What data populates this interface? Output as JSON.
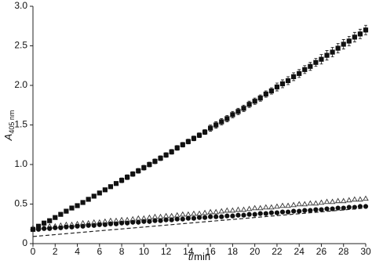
{
  "chart_data": {
    "type": "scatter",
    "x_label": {
      "symbol": "t",
      "rest": "/min"
    },
    "y_label": {
      "symbol": "A",
      "subscript": "405 nm"
    },
    "xlim": [
      0,
      30
    ],
    "xticks": [
      0,
      2,
      4,
      6,
      8,
      10,
      12,
      14,
      16,
      18,
      20,
      22,
      24,
      26,
      28,
      30
    ],
    "ylim": [
      0,
      3
    ],
    "yticks": [
      0,
      0.5,
      {
        "value": 1,
        "label": "1.0"
      },
      1.5,
      {
        "value": 2,
        "label": "2.0"
      },
      2.5,
      {
        "value": 3,
        "label": "3.0"
      }
    ],
    "grid": false,
    "x": [
      0,
      0.5,
      1,
      1.5,
      2,
      2.5,
      3,
      3.5,
      4,
      4.5,
      5,
      5.5,
      6,
      6.5,
      7,
      7.5,
      8,
      8.5,
      9,
      9.5,
      10,
      10.5,
      11,
      11.5,
      12,
      12.5,
      13,
      13.5,
      14,
      14.5,
      15,
      15.5,
      16,
      16.5,
      17,
      17.5,
      18,
      18.5,
      19,
      19.5,
      20,
      20.5,
      21,
      21.5,
      22,
      22.5,
      23,
      23.5,
      24,
      24.5,
      25,
      25.5,
      26,
      26.5,
      27,
      27.5,
      28,
      28.5,
      29,
      29.5,
      30
    ],
    "series": [
      {
        "marker": "triangle",
        "filled": false,
        "color": "#333333",
        "values": [
          0.2,
          0.21,
          0.21,
          0.22,
          0.22,
          0.23,
          0.24,
          0.24,
          0.25,
          0.26,
          0.26,
          0.27,
          0.27,
          0.28,
          0.29,
          0.29,
          0.3,
          0.3,
          0.31,
          0.32,
          0.32,
          0.33,
          0.34,
          0.34,
          0.35,
          0.35,
          0.36,
          0.37,
          0.37,
          0.38,
          0.38,
          0.39,
          0.4,
          0.4,
          0.41,
          0.42,
          0.42,
          0.43,
          0.43,
          0.44,
          0.45,
          0.45,
          0.46,
          0.46,
          0.47,
          0.48,
          0.48,
          0.49,
          0.5,
          0.5,
          0.51,
          0.51,
          0.52,
          0.53,
          0.53,
          0.54,
          0.54,
          0.55,
          0.56,
          0.56,
          0.57
        ]
      },
      {
        "marker": "circle",
        "filled": true,
        "color": "#111111",
        "values": [
          0.18,
          0.18,
          0.19,
          0.19,
          0.2,
          0.2,
          0.21,
          0.21,
          0.22,
          0.22,
          0.23,
          0.23,
          0.24,
          0.24,
          0.25,
          0.25,
          0.26,
          0.26,
          0.27,
          0.27,
          0.28,
          0.28,
          0.29,
          0.29,
          0.3,
          0.3,
          0.31,
          0.31,
          0.32,
          0.32,
          0.33,
          0.33,
          0.34,
          0.34,
          0.34,
          0.35,
          0.35,
          0.36,
          0.36,
          0.37,
          0.37,
          0.38,
          0.38,
          0.39,
          0.39,
          0.4,
          0.4,
          0.41,
          0.41,
          0.42,
          0.42,
          0.43,
          0.43,
          0.44,
          0.44,
          0.45,
          0.45,
          0.46,
          0.46,
          0.47,
          0.47
        ]
      },
      {
        "marker": "square",
        "filled": true,
        "color": "#111111",
        "values": [
          0.18,
          0.22,
          0.26,
          0.29,
          0.33,
          0.37,
          0.41,
          0.45,
          0.48,
          0.52,
          0.56,
          0.6,
          0.64,
          0.68,
          0.72,
          0.76,
          0.8,
          0.84,
          0.88,
          0.92,
          0.96,
          1.0,
          1.04,
          1.08,
          1.12,
          1.16,
          1.21,
          1.25,
          1.29,
          1.33,
          1.37,
          1.41,
          1.46,
          1.5,
          1.54,
          1.58,
          1.63,
          1.67,
          1.71,
          1.76,
          1.8,
          1.84,
          1.89,
          1.93,
          1.98,
          2.02,
          2.06,
          2.11,
          2.15,
          2.2,
          2.24,
          2.29,
          2.33,
          2.38,
          2.42,
          2.47,
          2.52,
          2.56,
          2.61,
          2.65,
          2.7
        ],
        "errors": [
          0.02,
          0.02,
          0.02,
          0.02,
          0.02,
          0.02,
          0.02,
          0.02,
          0.02,
          0.02,
          0.02,
          0.02,
          0.02,
          0.02,
          0.02,
          0.02,
          0.03,
          0.03,
          0.03,
          0.03,
          0.03,
          0.03,
          0.03,
          0.03,
          0.03,
          0.03,
          0.03,
          0.03,
          0.03,
          0.03,
          0.03,
          0.03,
          0.04,
          0.04,
          0.04,
          0.04,
          0.04,
          0.04,
          0.04,
          0.04,
          0.04,
          0.04,
          0.04,
          0.04,
          0.05,
          0.05,
          0.05,
          0.05,
          0.05,
          0.05,
          0.05,
          0.05,
          0.06,
          0.06,
          0.06,
          0.06,
          0.06,
          0.06,
          0.06,
          0.06,
          0.06
        ]
      },
      {
        "marker": "none",
        "dashed": true,
        "color": "#222222",
        "x": [
          0,
          30
        ],
        "values": [
          0.09,
          0.45
        ]
      }
    ]
  }
}
